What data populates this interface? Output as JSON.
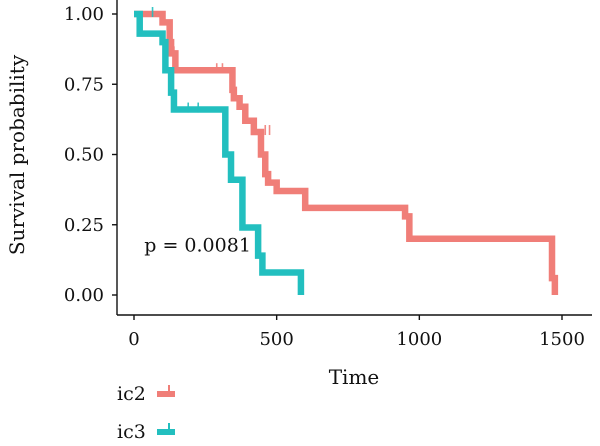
{
  "chart_data": {
    "type": "line",
    "subtype": "kaplan-meier",
    "xlabel": "Time",
    "ylabel": "Survival probability",
    "xlim": [
      -30,
      1530
    ],
    "ylim": [
      0,
      1
    ],
    "x_ticks": [
      0,
      500,
      1000,
      1500
    ],
    "x_tick_labels": [
      "0",
      "500",
      "1000",
      "1500"
    ],
    "y_ticks": [
      0,
      0.25,
      0.5,
      0.75,
      1
    ],
    "y_tick_labels": [
      "0.00",
      "0.25",
      "0.50",
      "0.75",
      "1.00"
    ],
    "grid": false,
    "annotation": {
      "text": "p = 0.0081",
      "x": 50,
      "y": 0.18
    },
    "legend_position": "bottom-left",
    "series": [
      {
        "name": "ic2",
        "color": "#F07E78",
        "steps": [
          [
            0,
            1.0
          ],
          [
            75,
            1.0
          ],
          [
            100,
            0.97
          ],
          [
            125,
            0.9
          ],
          [
            130,
            0.86
          ],
          [
            145,
            0.8
          ],
          [
            330,
            0.8
          ],
          [
            345,
            0.73
          ],
          [
            350,
            0.7
          ],
          [
            370,
            0.67
          ],
          [
            390,
            0.62
          ],
          [
            420,
            0.58
          ],
          [
            445,
            0.5
          ],
          [
            460,
            0.43
          ],
          [
            470,
            0.4
          ],
          [
            500,
            0.37
          ],
          [
            600,
            0.31
          ],
          [
            950,
            0.28
          ],
          [
            965,
            0.2
          ],
          [
            1460,
            0.2
          ],
          [
            1465,
            0.06
          ],
          [
            1475,
            0.0
          ]
        ],
        "end_x": 1475,
        "censors": [
          [
            140,
            0.86
          ],
          [
            290,
            0.8
          ],
          [
            310,
            0.8
          ],
          [
            460,
            0.58
          ],
          [
            475,
            0.58
          ]
        ]
      },
      {
        "name": "ic3",
        "color": "#22BFBF",
        "steps": [
          [
            0,
            1.0
          ],
          [
            20,
            0.93
          ],
          [
            100,
            0.9
          ],
          [
            110,
            0.8
          ],
          [
            130,
            0.72
          ],
          [
            140,
            0.66
          ],
          [
            310,
            0.66
          ],
          [
            320,
            0.5
          ],
          [
            340,
            0.41
          ],
          [
            380,
            0.24
          ],
          [
            420,
            0.24
          ],
          [
            435,
            0.14
          ],
          [
            450,
            0.08
          ],
          [
            580,
            0.08
          ],
          [
            585,
            0.0
          ]
        ],
        "end_x": 585,
        "censors": [
          [
            65,
            1.0
          ],
          [
            190,
            0.66
          ],
          [
            225,
            0.66
          ]
        ]
      }
    ]
  }
}
